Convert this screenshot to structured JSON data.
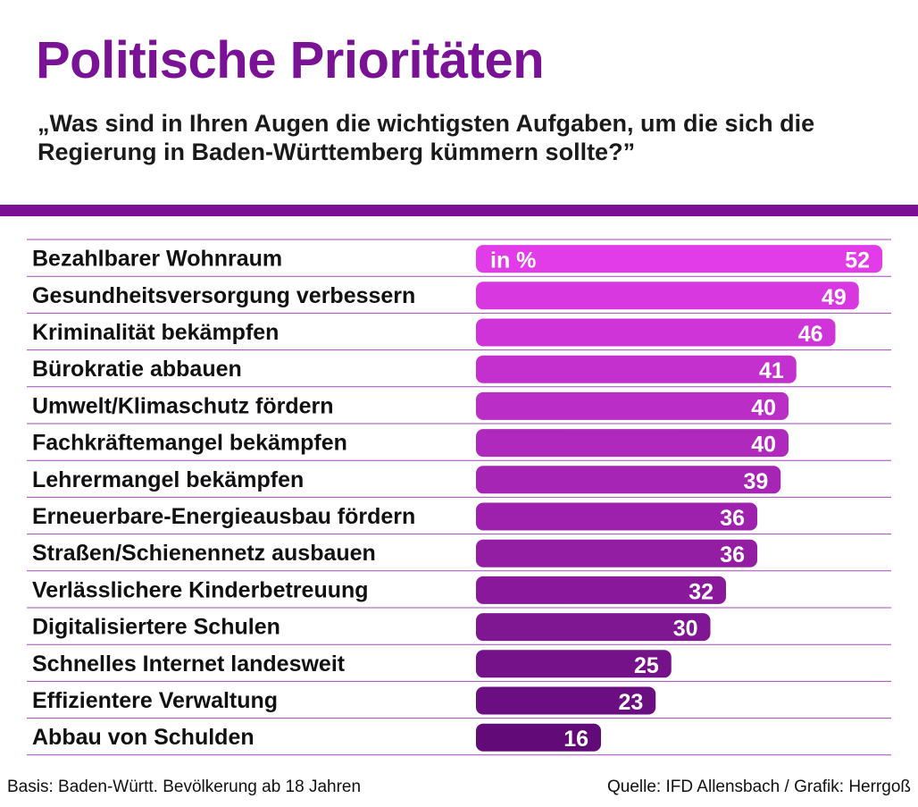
{
  "title": "Politische Prioritäten",
  "subtitle": "„Was sind in Ihren Augen die wichtigsten Aufgaben, um die sich die Regierung in Baden-Württemberg kümmern sollte?”",
  "footer": {
    "basis": "Basis: Baden-Württ. Bevölkerung ab 18 Jahren",
    "source": "Quelle: IFD Allensbach / Grafik: Herrgoß"
  },
  "colors": {
    "title": "#7a1296",
    "rule": "#7a0f95",
    "bar_top": "#e23ce8",
    "bar_bottom": "#610a78"
  },
  "chart_data": {
    "type": "bar",
    "orientation": "horizontal",
    "unit_label": "in %",
    "categories": [
      "Bezahlbarer Wohnraum",
      "Gesundheitsversorgung verbessern",
      "Kriminalität bekämpfen",
      "Bürokratie abbauen",
      "Umwelt/Klimaschutz fördern",
      "Fachkräftemangel bekämpfen",
      "Lehrermangel bekämpfen",
      "Erneuerbare-Energieausbau fördern",
      "Straßen/Schienennetz ausbauen",
      "Verlässlichere Kinderbetreuung",
      "Digitalisiertere Schulen",
      "Schnelles Internet landesweit",
      "Effizientere Verwaltung",
      "Abbau von Schulden"
    ],
    "values": [
      52,
      49,
      46,
      41,
      40,
      40,
      39,
      36,
      36,
      32,
      30,
      25,
      23,
      16
    ],
    "xlim": [
      0,
      52
    ],
    "grid": false,
    "legend": "none"
  }
}
